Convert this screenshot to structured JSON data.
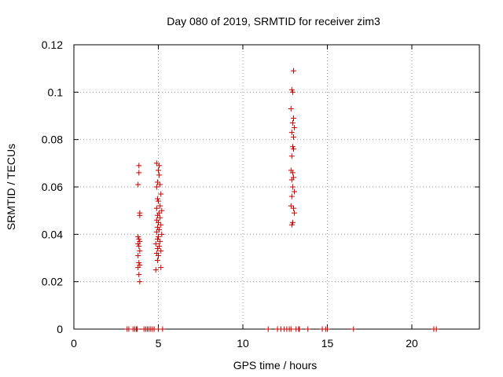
{
  "chart_data": {
    "type": "scatter",
    "title": "Day 080 of 2019, SRMTID for receiver zim3",
    "xlabel": "GPS time / hours",
    "ylabel": "SRMTID / TECUs",
    "xlim": [
      0,
      24
    ],
    "ylim": [
      0,
      0.12
    ],
    "xticks": [
      0,
      5,
      10,
      15,
      20
    ],
    "yticks": [
      0,
      0.02,
      0.04,
      0.06,
      0.08,
      0.1,
      0.12
    ],
    "ytick_labels": [
      "0",
      "0.02",
      "0.04",
      "0.06",
      "0.08",
      "0.1",
      "0.12"
    ],
    "grid": true,
    "marker": "+",
    "series": [
      {
        "name": "SRMTID",
        "color": "#cc0000",
        "points": [
          [
            3.85,
            0.069
          ],
          [
            3.85,
            0.066
          ],
          [
            3.8,
            0.061
          ],
          [
            3.9,
            0.049
          ],
          [
            3.9,
            0.048
          ],
          [
            3.8,
            0.039
          ],
          [
            3.85,
            0.038
          ],
          [
            3.9,
            0.037
          ],
          [
            3.8,
            0.036
          ],
          [
            3.85,
            0.035
          ],
          [
            3.9,
            0.033
          ],
          [
            3.8,
            0.031
          ],
          [
            3.85,
            0.028
          ],
          [
            3.9,
            0.027
          ],
          [
            3.8,
            0.026
          ],
          [
            3.85,
            0.023
          ],
          [
            3.9,
            0.02
          ],
          [
            4.9,
            0.07
          ],
          [
            5.05,
            0.069
          ],
          [
            5.0,
            0.067
          ],
          [
            5.05,
            0.065
          ],
          [
            4.95,
            0.062
          ],
          [
            5.1,
            0.061
          ],
          [
            4.9,
            0.06
          ],
          [
            5.15,
            0.057
          ],
          [
            4.95,
            0.055
          ],
          [
            5.0,
            0.054
          ],
          [
            5.1,
            0.052
          ],
          [
            4.9,
            0.051
          ],
          [
            5.2,
            0.05
          ],
          [
            5.05,
            0.049
          ],
          [
            4.95,
            0.048
          ],
          [
            5.1,
            0.047
          ],
          [
            4.9,
            0.046
          ],
          [
            5.0,
            0.045
          ],
          [
            5.15,
            0.044
          ],
          [
            4.95,
            0.043
          ],
          [
            5.05,
            0.042
          ],
          [
            4.9,
            0.041
          ],
          [
            5.2,
            0.04
          ],
          [
            5.0,
            0.039
          ],
          [
            4.95,
            0.038
          ],
          [
            5.1,
            0.037
          ],
          [
            4.85,
            0.036
          ],
          [
            5.05,
            0.035
          ],
          [
            4.95,
            0.034
          ],
          [
            5.15,
            0.033
          ],
          [
            4.9,
            0.032
          ],
          [
            5.0,
            0.031
          ],
          [
            4.95,
            0.029
          ],
          [
            5.15,
            0.026
          ],
          [
            4.85,
            0.025
          ],
          [
            13.0,
            0.109
          ],
          [
            12.9,
            0.101
          ],
          [
            12.95,
            0.1
          ],
          [
            12.85,
            0.093
          ],
          [
            13.0,
            0.089
          ],
          [
            12.95,
            0.087
          ],
          [
            13.05,
            0.085
          ],
          [
            12.9,
            0.083
          ],
          [
            13.0,
            0.081
          ],
          [
            12.95,
            0.077
          ],
          [
            13.0,
            0.076
          ],
          [
            12.9,
            0.073
          ],
          [
            12.85,
            0.067
          ],
          [
            12.95,
            0.066
          ],
          [
            13.0,
            0.064
          ],
          [
            12.9,
            0.063
          ],
          [
            12.95,
            0.06
          ],
          [
            13.05,
            0.058
          ],
          [
            12.9,
            0.056
          ],
          [
            12.85,
            0.052
          ],
          [
            13.0,
            0.051
          ],
          [
            13.05,
            0.049
          ],
          [
            12.95,
            0.045
          ],
          [
            12.9,
            0.044
          ],
          [
            3.15,
            0.0
          ],
          [
            3.25,
            0.0
          ],
          [
            3.5,
            0.0
          ],
          [
            3.6,
            0.0
          ],
          [
            3.7,
            0.0
          ],
          [
            3.75,
            0.0
          ],
          [
            4.15,
            0.0
          ],
          [
            4.25,
            0.0
          ],
          [
            4.35,
            0.0
          ],
          [
            4.45,
            0.0
          ],
          [
            4.55,
            0.0
          ],
          [
            4.65,
            0.0
          ],
          [
            4.75,
            0.0
          ],
          [
            5.0,
            0.0
          ],
          [
            5.25,
            0.0
          ],
          [
            11.5,
            0.0
          ],
          [
            12.05,
            0.0
          ],
          [
            12.25,
            0.0
          ],
          [
            12.45,
            0.0
          ],
          [
            12.6,
            0.0
          ],
          [
            12.75,
            0.0
          ],
          [
            12.85,
            0.0
          ],
          [
            13.15,
            0.0
          ],
          [
            13.3,
            0.0
          ],
          [
            13.35,
            0.0
          ],
          [
            13.85,
            0.0
          ],
          [
            14.7,
            0.0
          ],
          [
            14.9,
            0.0
          ],
          [
            15.0,
            0.0
          ],
          [
            16.55,
            0.0
          ],
          [
            21.3,
            0.0
          ],
          [
            21.45,
            0.0
          ]
        ]
      }
    ]
  }
}
